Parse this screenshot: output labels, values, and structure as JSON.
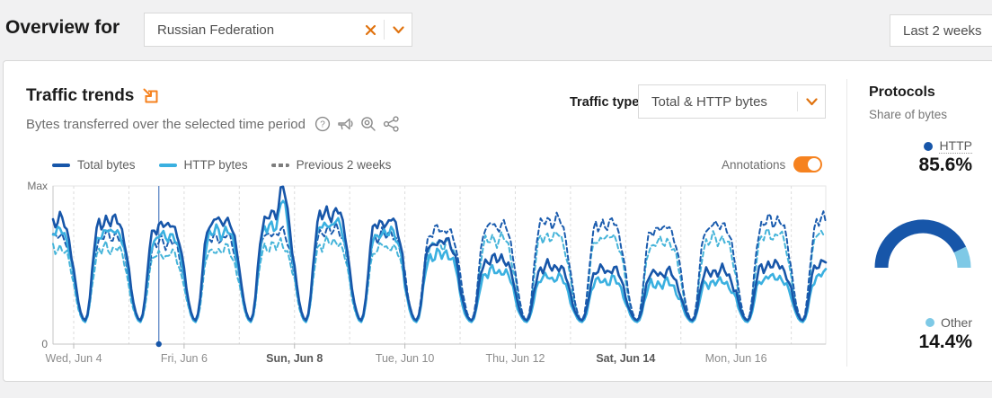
{
  "header": {
    "title": "Overview for",
    "location_select": {
      "value": "Russian Federation"
    },
    "date_range": {
      "value": "Last 2 weeks"
    }
  },
  "traffic_card": {
    "title": "Traffic trends",
    "subtitle": "Bytes transferred over the selected time period",
    "subtitle_icons": [
      "help-icon",
      "megaphone-icon",
      "zoom-detail-icon",
      "share-icon"
    ],
    "traffic_type_label": "Traffic type",
    "traffic_type_value": "Total & HTTP bytes",
    "legend": [
      {
        "label": "Total bytes",
        "color": "#1756a9",
        "style": "solid"
      },
      {
        "label": "HTTP bytes",
        "color": "#3ab0e0",
        "style": "solid"
      },
      {
        "label": "Previous 2 weeks",
        "color": "#7d7d7d",
        "style": "dashed"
      }
    ],
    "annotations_label": "Annotations",
    "annotations_on": true
  },
  "protocols_panel": {
    "title": "Protocols",
    "subtitle": "Share of bytes",
    "items": [
      {
        "label": "HTTP",
        "value": "85.6%",
        "pct": 85.6,
        "color": "#1756a9"
      },
      {
        "label": "Other",
        "value": "14.4%",
        "pct": 14.4,
        "color": "#7ec9e6"
      }
    ]
  },
  "colors": {
    "accent_orange": "#f6821f",
    "total_bytes": "#1756a9",
    "http_bytes": "#3ab0e0",
    "prev_total": "#1b5cae",
    "prev_http": "#45b4d9",
    "grid": "#dcdcdc",
    "axis": "#c4c4c4",
    "annotation_line": "#5b87c6"
  },
  "chart_data": {
    "type": "line",
    "title": "Traffic trends",
    "subtitle": "Bytes transferred over the selected time period",
    "y_axis": {
      "max_label": "Max",
      "min_label": "0",
      "range_pct": [
        0,
        100
      ],
      "grid": "vertical-daily-dashed"
    },
    "x_axis": {
      "window_days": 14,
      "window_hours": 336,
      "start": "Jun 3 15:00 (window opens 9h before Jun 4)",
      "start_offset_hours": -9,
      "ticks": [
        {
          "day": 0,
          "label": "Wed, Jun 4",
          "bold": false
        },
        {
          "day": 2,
          "label": "Fri, Jun 6",
          "bold": false
        },
        {
          "day": 4,
          "label": "Sun, Jun 8",
          "bold": true
        },
        {
          "day": 6,
          "label": "Tue, Jun 10",
          "bold": false
        },
        {
          "day": 8,
          "label": "Thu, Jun 12",
          "bold": false
        },
        {
          "day": 10,
          "label": "Sat, Jun 14",
          "bold": true
        },
        {
          "day": 12,
          "label": "Mon, Jun 16",
          "bold": false
        }
      ],
      "gridline_days": [
        0,
        1,
        2,
        3,
        4,
        5,
        6,
        7,
        8,
        9,
        10,
        11,
        12,
        13
      ]
    },
    "unit": "percent of Max",
    "daily_shape_by_hour": [
      0.5,
      0.32,
      0.18,
      0.08,
      0.02,
      0.0,
      0.06,
      0.22,
      0.48,
      0.72,
      0.88,
      0.95,
      0.92,
      0.96,
      1.0,
      0.97,
      0.93,
      0.96,
      1.0,
      0.98,
      0.94,
      0.88,
      0.78,
      0.64
    ],
    "series": [
      {
        "name": "Total bytes",
        "style": "solid",
        "color": "#1756a9",
        "width": 2.6,
        "trough": 15,
        "daily_peaks": [
          80,
          77,
          80,
          83,
          85,
          79,
          66,
          55,
          50,
          48,
          46,
          47,
          51,
          53
        ],
        "spike": {
          "hour": 100,
          "add": 18,
          "note": "sharp spike to Max late Jun 7 / early Jun 8"
        }
      },
      {
        "name": "HTTP bytes",
        "style": "solid",
        "color": "#3ab0e0",
        "width": 2.6,
        "trough": 14,
        "daily_peaks": [
          73,
          70,
          73,
          76,
          78,
          72,
          58,
          47,
          43,
          41,
          39,
          40,
          43,
          45
        ],
        "spike": {
          "hour": 100,
          "add": 16
        }
      },
      {
        "name": "Previous 2 weeks - Total bytes",
        "style": "dashed",
        "color": "#1b5cae",
        "width": 2,
        "trough": 15,
        "daily_peaks": [
          70,
          66,
          69,
          72,
          74,
          71,
          74,
          77,
          80,
          78,
          75,
          77,
          80,
          81
        ]
      },
      {
        "name": "Previous 2 weeks - HTTP bytes",
        "style": "dashed",
        "color": "#45b4d9",
        "width": 2,
        "trough": 14,
        "daily_peaks": [
          62,
          58,
          61,
          64,
          66,
          63,
          65,
          68,
          70,
          69,
          66,
          68,
          71,
          72
        ]
      }
    ],
    "annotation_marker": {
      "hour": 46,
      "style": "vertical blue line with dot at baseline"
    },
    "legend_position": "top-left"
  }
}
